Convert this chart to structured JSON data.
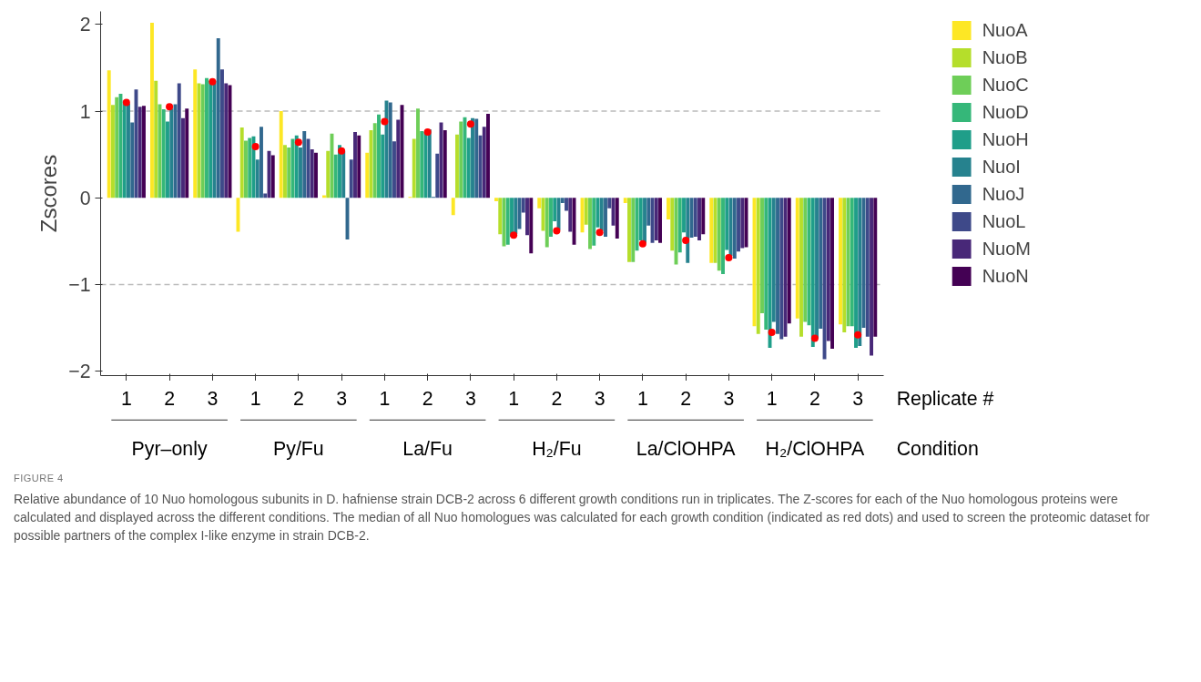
{
  "chart_data": {
    "type": "bar",
    "ylabel": "Zscores",
    "categories": [
      "1",
      "2",
      "3",
      "1",
      "2",
      "3",
      "1",
      "2",
      "3",
      "1",
      "2",
      "3",
      "1",
      "2",
      "3",
      "1",
      "2",
      "3"
    ],
    "ylim": [
      -2.05,
      2.15
    ],
    "yticks": [
      {
        "value": -2,
        "label": "−2"
      },
      {
        "value": -1,
        "label": "−1"
      },
      0,
      1,
      2
    ],
    "grid": false,
    "legend": "right",
    "series": [
      {
        "name": "NuoA",
        "color": "#fde725",
        "values": [
          1.47,
          2.02,
          1.48,
          -0.39,
          1.0,
          0.03,
          0.52,
          0.01,
          -0.2,
          -0.04,
          -0.12,
          -0.4,
          -0.06,
          -0.25,
          -0.75,
          -1.48,
          -1.39,
          -1.46
        ]
      },
      {
        "name": "NuoB",
        "color": "#b5de2b",
        "values": [
          1.07,
          1.35,
          1.32,
          0.81,
          0.61,
          0.54,
          0.78,
          0.68,
          0.73,
          -0.42,
          -0.38,
          -0.31,
          -0.74,
          -0.61,
          -0.75,
          -1.57,
          -1.6,
          -1.55
        ]
      },
      {
        "name": "NuoC",
        "color": "#6ece58",
        "values": [
          1.16,
          1.08,
          1.31,
          0.66,
          0.58,
          0.74,
          0.86,
          1.03,
          0.88,
          -0.56,
          -0.57,
          -0.59,
          -0.74,
          -0.77,
          -0.84,
          -1.33,
          -1.43,
          -1.48
        ]
      },
      {
        "name": "NuoD",
        "color": "#35b779",
        "values": [
          1.2,
          1.02,
          1.38,
          0.69,
          0.68,
          0.5,
          0.96,
          0.77,
          0.93,
          -0.54,
          -0.45,
          -0.55,
          -0.61,
          -0.63,
          -0.88,
          -1.52,
          -1.47,
          -1.48
        ]
      },
      {
        "name": "NuoH",
        "color": "#1f9e89",
        "values": [
          1.12,
          0.88,
          1.35,
          0.71,
          0.72,
          0.61,
          0.73,
          0.76,
          0.69,
          -0.45,
          -0.27,
          -0.34,
          -0.49,
          -0.4,
          -0.6,
          -1.73,
          -1.72,
          -1.73
        ]
      },
      {
        "name": "NuoI",
        "color": "#26828e",
        "values": [
          1.09,
          1.03,
          1.35,
          0.44,
          0.58,
          0.54,
          1.12,
          0.79,
          0.92,
          -0.42,
          -0.37,
          -0.38,
          -0.52,
          -0.75,
          -0.67,
          -1.43,
          -1.62,
          -1.71
        ]
      },
      {
        "name": "NuoJ",
        "color": "#31688e",
        "values": [
          0.87,
          1.08,
          1.84,
          0.82,
          0.77,
          -0.48,
          1.1,
          0.01,
          0.91,
          -0.36,
          -0.06,
          -0.45,
          -0.32,
          -0.46,
          -0.7,
          -1.57,
          -1.51,
          -1.5
        ]
      },
      {
        "name": "NuoL",
        "color": "#3e4989",
        "values": [
          1.25,
          1.32,
          1.48,
          0.05,
          0.68,
          0.44,
          0.65,
          0.51,
          0.72,
          -0.17,
          -0.15,
          -0.12,
          -0.52,
          -0.45,
          -0.62,
          -1.63,
          -1.86,
          -1.6
        ]
      },
      {
        "name": "NuoM",
        "color": "#482878",
        "values": [
          1.05,
          0.92,
          1.32,
          0.54,
          0.56,
          0.76,
          0.9,
          0.87,
          0.82,
          -0.43,
          -0.39,
          -0.32,
          -0.49,
          -0.49,
          -0.58,
          -1.6,
          -1.65,
          -1.82
        ]
      },
      {
        "name": "NuoN",
        "color": "#440154",
        "values": [
          1.06,
          1.03,
          1.3,
          0.49,
          0.52,
          0.72,
          1.07,
          0.78,
          0.97,
          -0.64,
          -0.54,
          -0.47,
          -0.52,
          -0.42,
          -0.57,
          -1.45,
          -1.74,
          -1.6
        ]
      },
      {
        "type": "scatter",
        "marker": "circle",
        "color": "#ff0000",
        "values": [
          1.1,
          1.05,
          1.34,
          0.59,
          0.64,
          0.54,
          0.88,
          0.76,
          0.85,
          -0.43,
          -0.38,
          -0.4,
          -0.53,
          -0.49,
          -0.69,
          -1.55,
          -1.62,
          -1.58
        ]
      }
    ],
    "ref_lines": [
      {
        "axis": "y",
        "value": 1,
        "color": "#bbbbbb",
        "line_style": "dashed"
      },
      {
        "axis": "y",
        "value": -1,
        "color": "#bbbbbb",
        "line_style": "dashed"
      }
    ],
    "annotations": [
      "Replicate #",
      "Condition",
      "Pyr–only",
      "Py/Fu",
      "La/Fu",
      "H₂/Fu",
      "La/ClOHPA",
      "H₂/ClOHPA",
      "FIGURE 4",
      "Relative abundance of 10 Nuo homologous subunits in D. hafniense strain DCB-2 across 6 different growth conditions run in triplicates. The Z-scores for each of the Nuo homologous proteins were calculated and displayed across the different conditions. The median of all Nuo homologues was calculated for each growth condition (indicated as red dots) and used to screen the proteomic dataset for possible partners of the complex I-like enzyme in strain DCB-2."
    ]
  }
}
